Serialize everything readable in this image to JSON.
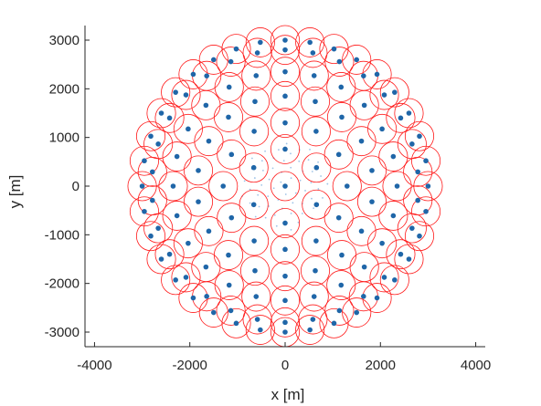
{
  "chart_data": {
    "type": "scatter",
    "title": "",
    "xlabel": "x [m]",
    "ylabel": "y [m]",
    "xlim": [
      -4200,
      4200
    ],
    "ylim": [
      -3300,
      3300
    ],
    "xticks": [
      -4000,
      -2000,
      0,
      2000,
      4000
    ],
    "xtick_labels": [
      "-4000",
      "-2000",
      "0",
      "2000",
      "4000"
    ],
    "yticks": [
      -3000,
      -2000,
      -1000,
      0,
      1000,
      2000,
      3000
    ],
    "ytick_labels": [
      "-3000",
      "-2000",
      "-1000",
      "0",
      "1000",
      "2000",
      "3000"
    ],
    "grid": false,
    "legend": "none",
    "colors": {
      "point": "#1f66a8",
      "circle": "#ff1a1a",
      "axis": "#262626",
      "faint_point": "#9ec3e6"
    },
    "coverage_radius": 300,
    "series": [
      {
        "marker": "dot",
        "rings": [
          {
            "radius": 0,
            "count": 1,
            "phase_deg": 90
          },
          {
            "radius": 760,
            "count": 6,
            "phase_deg": 90
          },
          {
            "radius": 1300,
            "count": 12,
            "phase_deg": 90
          },
          {
            "radius": 1850,
            "count": 18,
            "phase_deg": 90
          },
          {
            "radius": 2350,
            "count": 24,
            "phase_deg": 90
          },
          {
            "radius": 2800,
            "count": 30,
            "phase_deg": 90
          },
          {
            "radius": 3000,
            "count": 36,
            "phase_deg": 90
          }
        ]
      }
    ]
  }
}
